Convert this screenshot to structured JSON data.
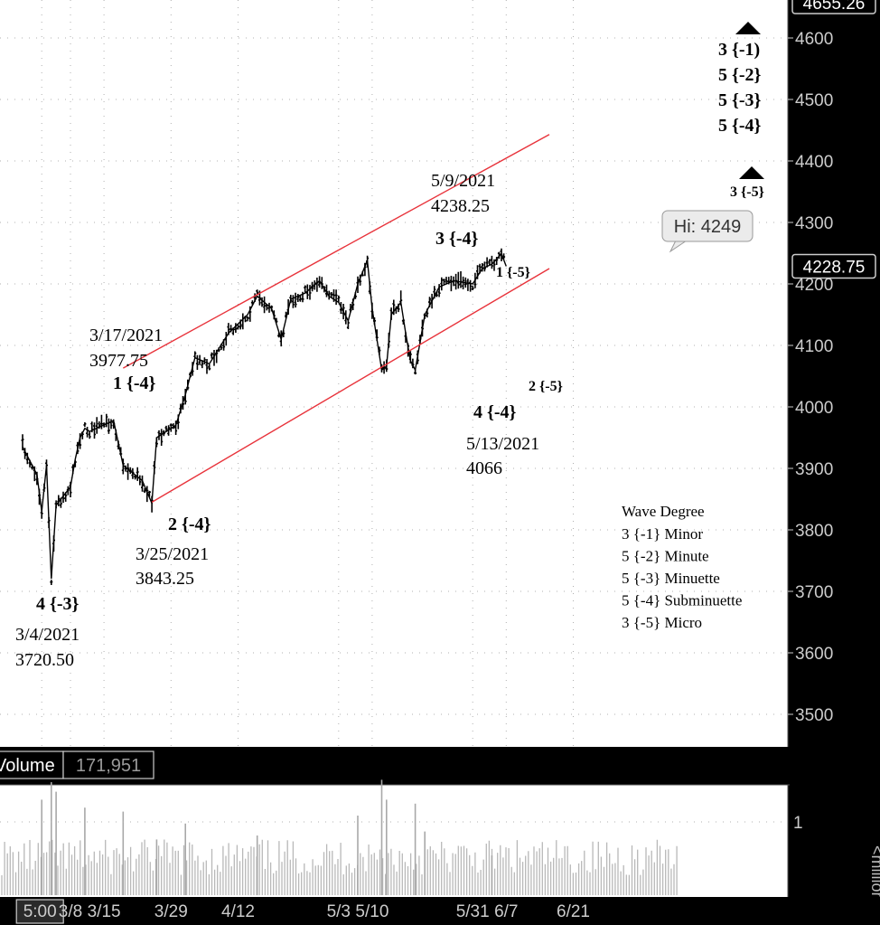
{
  "chart_data": {
    "type": "candlestick",
    "instrument": "",
    "price_axis": {
      "ticks": [
        "4600",
        "4500",
        "4400",
        "4300",
        "4200",
        "4100",
        "4000",
        "3900",
        "3800",
        "3700",
        "3600",
        "3500"
      ],
      "ylim": [
        3440,
        4660
      ],
      "top_label": "4655.26",
      "last_price_label": "4228.75",
      "last_price": 4228.75
    },
    "x_axis": {
      "ticks": [
        "5:00",
        "3/8",
        "3/15",
        "3/29",
        "4/12",
        "5/3",
        "5/10",
        "5/31",
        "6/7",
        "6/21"
      ],
      "tick_dates": [
        "2021-03-02",
        "2021-03-08",
        "2021-03-15",
        "2021-03-29",
        "2021-04-12",
        "2021-05-03",
        "2021-05-10",
        "2021-05-31",
        "2021-06-07",
        "2021-06-21"
      ],
      "first_tick_boxed": true
    },
    "price_path": [
      {
        "date": "2021-02-26",
        "price": 3935
      },
      {
        "date": "2021-03-01",
        "price": 3890
      },
      {
        "date": "2021-03-02",
        "price": 3830
      },
      {
        "date": "2021-03-03",
        "price": 3905
      },
      {
        "date": "2021-03-04",
        "price": 3720.5
      },
      {
        "date": "2021-03-05",
        "price": 3840
      },
      {
        "date": "2021-03-08",
        "price": 3870
      },
      {
        "date": "2021-03-09",
        "price": 3915
      },
      {
        "date": "2021-03-10",
        "price": 3950
      },
      {
        "date": "2021-03-11",
        "price": 3965
      },
      {
        "date": "2021-03-12",
        "price": 3960
      },
      {
        "date": "2021-03-17",
        "price": 3977.75
      },
      {
        "date": "2021-03-19",
        "price": 3905
      },
      {
        "date": "2021-03-23",
        "price": 3880
      },
      {
        "date": "2021-03-25",
        "price": 3843.25
      },
      {
        "date": "2021-03-26",
        "price": 3950
      },
      {
        "date": "2021-03-30",
        "price": 3970
      },
      {
        "date": "2021-04-01",
        "price": 4020
      },
      {
        "date": "2021-04-03",
        "price": 4080
      },
      {
        "date": "2021-04-06",
        "price": 4070
      },
      {
        "date": "2021-04-10",
        "price": 4120
      },
      {
        "date": "2021-04-14",
        "price": 4150
      },
      {
        "date": "2021-04-16",
        "price": 4180
      },
      {
        "date": "2021-04-19",
        "price": 4160
      },
      {
        "date": "2021-04-21",
        "price": 4110
      },
      {
        "date": "2021-04-23",
        "price": 4175
      },
      {
        "date": "2021-04-26",
        "price": 4185
      },
      {
        "date": "2021-04-29",
        "price": 4205
      },
      {
        "date": "2021-05-01",
        "price": 4180
      },
      {
        "date": "2021-05-03",
        "price": 4170
      },
      {
        "date": "2021-05-05",
        "price": 4140
      },
      {
        "date": "2021-05-07",
        "price": 4200
      },
      {
        "date": "2021-05-09",
        "price": 4238.25
      },
      {
        "date": "2021-05-10",
        "price": 4160
      },
      {
        "date": "2021-05-11",
        "price": 4110
      },
      {
        "date": "2021-05-12",
        "price": 4060
      },
      {
        "date": "2021-05-13",
        "price": 4066
      },
      {
        "date": "2021-05-14",
        "price": 4150
      },
      {
        "date": "2021-05-16",
        "price": 4170
      },
      {
        "date": "2021-05-17",
        "price": 4120
      },
      {
        "date": "2021-05-18",
        "price": 4075
      },
      {
        "date": "2021-05-19",
        "price": 4060
      },
      {
        "date": "2021-05-21",
        "price": 4150
      },
      {
        "date": "2021-05-24",
        "price": 4195
      },
      {
        "date": "2021-05-27",
        "price": 4205
      },
      {
        "date": "2021-05-31",
        "price": 4200
      },
      {
        "date": "2021-06-02",
        "price": 4225
      },
      {
        "date": "2021-06-04",
        "price": 4232
      },
      {
        "date": "2021-06-06",
        "price": 4249
      },
      {
        "date": "2021-06-07",
        "price": 4228.75
      }
    ],
    "channel_lines": [
      {
        "points": [
          {
            "date": "2021-03-19",
            "price": 4063
          },
          {
            "date": "2021-06-16",
            "price": 4443
          }
        ]
      },
      {
        "points": [
          {
            "date": "2021-03-25",
            "price": 3845
          },
          {
            "date": "2021-06-16",
            "price": 4225
          }
        ]
      }
    ],
    "annotations": [
      {
        "lines": [
          "3/17/2021",
          "3977.75"
        ],
        "wave": "1 {-4}",
        "date": "2021-03-17",
        "price": 3977.75
      },
      {
        "lines": [
          "3/25/2021",
          "3843.25"
        ],
        "wave": "2 {-4}",
        "date": "2021-03-25",
        "price": 3843.25
      },
      {
        "lines": [
          "3/4/2021",
          "3720.50"
        ],
        "wave": "4 {-3}",
        "date": "2021-03-04",
        "price": 3720.5
      },
      {
        "lines": [
          "5/9/2021",
          "4238.25"
        ],
        "wave": "3 {-4}",
        "date": "2021-05-09",
        "price": 4238.25
      },
      {
        "lines": [
          "5/13/2021",
          "4066"
        ],
        "wave": "4 {-4}",
        "date": "2021-05-13",
        "price": 4066
      },
      {
        "lines": [],
        "wave": "1 {-5}",
        "date": "2021-05-14",
        "price": 4150
      },
      {
        "lines": [],
        "wave": "2 {-5}",
        "date": "2021-05-19",
        "price": 4060
      }
    ],
    "projected_waves_upper": [
      "3 {-1)",
      "5 {-2}",
      "5 {-3}",
      "5 {-4}"
    ],
    "projected_wave_lower": "3 {-5}",
    "high_bubble": "Hi: 4249",
    "legend": {
      "title": "Wave Degree",
      "entries": [
        "3 {-1} Minor",
        "5 {-2} Minute",
        "5 {-3} Minuette",
        "5 {-4} Subminuette",
        "3 {-5} Micro"
      ],
      "placement": "bottom-right"
    },
    "volume": {
      "label": "Volume",
      "value": "171,951",
      "axis_ticks": [
        "1"
      ],
      "ylabel": "<millions>",
      "ylim": [
        0,
        1.5
      ],
      "spikes": [
        {
          "date": "2021-03-02",
          "value": 1.2
        },
        {
          "date": "2021-03-04",
          "value": 1.42
        },
        {
          "date": "2021-03-05",
          "value": 1.3
        },
        {
          "date": "2021-03-11",
          "value": 1.1
        },
        {
          "date": "2021-03-19",
          "value": 1.05
        },
        {
          "date": "2021-03-26",
          "value": 0.7
        },
        {
          "date": "2021-04-01",
          "value": 0.9
        },
        {
          "date": "2021-04-16",
          "value": 0.75
        },
        {
          "date": "2021-05-07",
          "value": 1.0
        },
        {
          "date": "2021-05-12",
          "value": 1.45
        },
        {
          "date": "2021-05-13",
          "value": 1.2
        },
        {
          "date": "2021-05-19",
          "value": 1.15
        },
        {
          "date": "2021-05-21",
          "value": 0.8
        },
        {
          "date": "2021-06-04",
          "value": 0.5
        }
      ]
    },
    "grid": true
  }
}
